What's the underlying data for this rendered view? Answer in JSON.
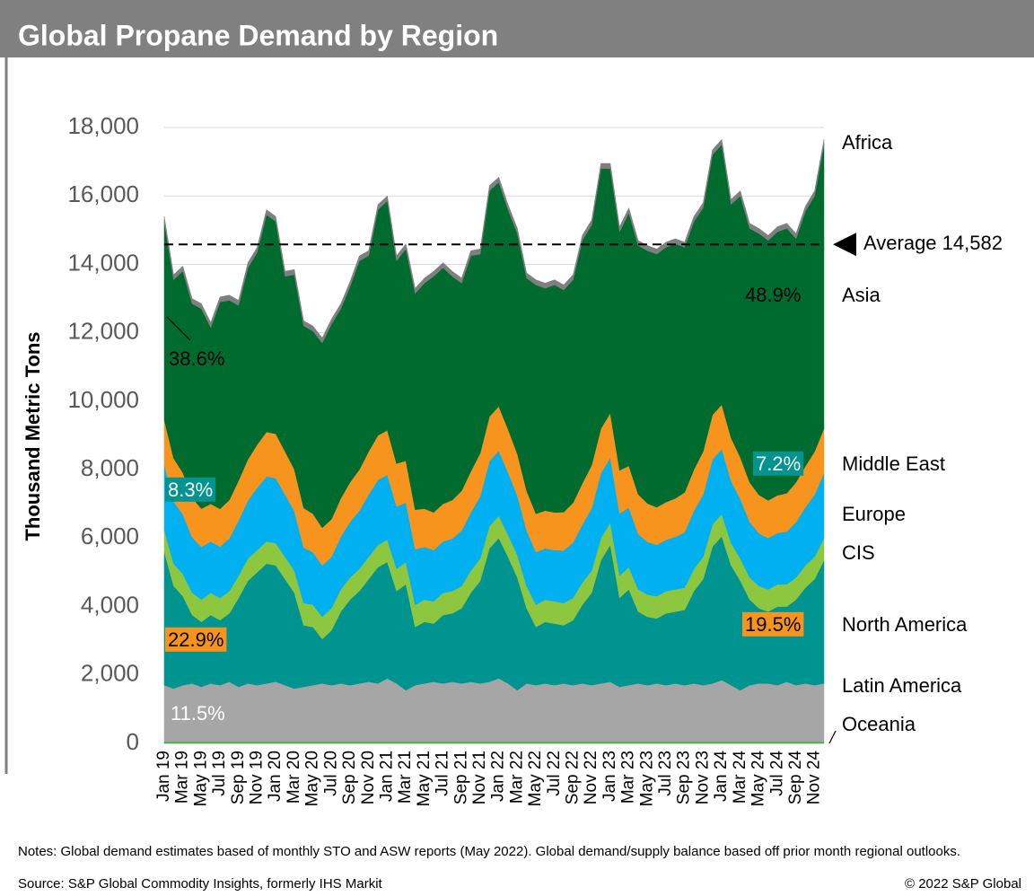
{
  "chart_data": {
    "type": "stacked_area",
    "title": "Global Propane Demand by Region",
    "y_label": "Thousand Metric Tons",
    "categories": [
      "Jan 19",
      null,
      "Mar 19",
      null,
      "May 19",
      null,
      "Jul 19",
      null,
      "Sep 19",
      null,
      "Nov 19",
      null,
      "Jan 20",
      null,
      "Mar 20",
      null,
      "May 20",
      null,
      "Jul 20",
      null,
      "Sep 20",
      null,
      "Nov 20",
      null,
      "Jan 21",
      null,
      "Mar 21",
      null,
      "May 21",
      null,
      "Jul 21",
      null,
      "Sep 21",
      null,
      "Nov 21",
      null,
      "Jan 22",
      null,
      "Mar 22",
      null,
      "May 22",
      null,
      "Jul 22",
      null,
      "Sep 22",
      null,
      "Nov 22",
      null,
      "Jan 23",
      null,
      "Mar 23",
      null,
      "May 23",
      null,
      "Jul 23",
      null,
      "Sep 23",
      null,
      "Nov 23",
      null,
      "Jan 24",
      null,
      "Mar 24",
      null,
      "May 24",
      null,
      "Jul 24",
      null,
      "Sep 24",
      null,
      "Nov 24",
      null
    ],
    "series": [
      {
        "name": "Oceania",
        "color": "#3cb44b",
        "values": [
          50,
          50,
          50,
          50,
          50,
          50,
          50,
          50,
          50,
          50,
          50,
          50,
          50,
          50,
          50,
          50,
          50,
          50,
          50,
          50,
          50,
          50,
          50,
          50,
          50,
          50,
          50,
          50,
          50,
          50,
          50,
          50,
          50,
          50,
          50,
          50,
          50,
          50,
          50,
          50,
          50,
          50,
          50,
          50,
          50,
          50,
          50,
          50,
          50,
          50,
          50,
          50,
          50,
          50,
          50,
          50,
          50,
          50,
          50,
          50,
          50,
          50,
          50,
          50,
          50,
          50,
          50,
          50,
          50,
          50,
          50,
          50
        ]
      },
      {
        "name": "Latin America",
        "color": "#a6a6a6",
        "values": [
          1650,
          1550,
          1650,
          1700,
          1600,
          1700,
          1650,
          1750,
          1600,
          1700,
          1650,
          1700,
          1750,
          1650,
          1550,
          1600,
          1650,
          1700,
          1650,
          1700,
          1650,
          1700,
          1750,
          1700,
          1850,
          1700,
          1500,
          1650,
          1700,
          1750,
          1700,
          1750,
          1700,
          1750,
          1700,
          1750,
          1850,
          1700,
          1500,
          1700,
          1650,
          1700,
          1650,
          1700,
          1650,
          1700,
          1650,
          1700,
          1750,
          1600,
          1650,
          1700,
          1650,
          1700,
          1650,
          1700,
          1650,
          1700,
          1650,
          1700,
          1800,
          1650,
          1500,
          1650,
          1700,
          1700,
          1650,
          1750,
          1650,
          1700,
          1650,
          1700
        ]
      },
      {
        "name": "North America",
        "color": "#009490",
        "values": [
          3900,
          3000,
          2600,
          2000,
          1900,
          2000,
          1900,
          2000,
          2600,
          3000,
          3300,
          3500,
          3400,
          3100,
          2800,
          1800,
          1700,
          1300,
          1600,
          2100,
          2500,
          2700,
          3000,
          3400,
          3400,
          2700,
          3100,
          1700,
          1800,
          1700,
          2000,
          2000,
          2200,
          2600,
          3000,
          3900,
          4100,
          3700,
          3300,
          2200,
          1700,
          1800,
          1800,
          1700,
          1900,
          2300,
          2700,
          3600,
          4000,
          2600,
          2800,
          2100,
          2000,
          1900,
          2100,
          2100,
          2200,
          2700,
          3100,
          4000,
          4200,
          3500,
          3200,
          2500,
          2200,
          2100,
          2300,
          2200,
          2500,
          2800,
          3100,
          3600
        ]
      },
      {
        "name": "CIS",
        "color": "#8dc63f",
        "values": [
          650,
          650,
          650,
          650,
          650,
          650,
          650,
          650,
          650,
          650,
          650,
          650,
          650,
          650,
          650,
          650,
          650,
          650,
          650,
          650,
          650,
          650,
          650,
          650,
          650,
          650,
          650,
          650,
          650,
          650,
          650,
          650,
          650,
          650,
          650,
          650,
          650,
          650,
          650,
          650,
          650,
          650,
          650,
          650,
          650,
          650,
          650,
          650,
          650,
          650,
          650,
          650,
          650,
          650,
          650,
          650,
          650,
          650,
          650,
          650,
          650,
          650,
          650,
          650,
          650,
          650,
          650,
          650,
          650,
          650,
          650,
          650
        ]
      },
      {
        "name": "Europe",
        "color": "#00b0f0",
        "values": [
          1900,
          1820,
          1740,
          1620,
          1540,
          1500,
          1500,
          1540,
          1620,
          1700,
          1820,
          1900,
          1900,
          1820,
          1740,
          1620,
          1540,
          1500,
          1500,
          1540,
          1620,
          1700,
          1820,
          1900,
          1900,
          1820,
          1740,
          1620,
          1540,
          1500,
          1500,
          1540,
          1620,
          1700,
          1820,
          1900,
          1900,
          1820,
          1740,
          1620,
          1540,
          1500,
          1500,
          1540,
          1620,
          1700,
          1820,
          1900,
          1900,
          1820,
          1740,
          1620,
          1540,
          1500,
          1500,
          1540,
          1620,
          1700,
          1820,
          1900,
          1900,
          1820,
          1740,
          1620,
          1540,
          1500,
          1500,
          1540,
          1620,
          1700,
          1820,
          1900
        ]
      },
      {
        "name": "Middle East",
        "color": "#f7941d",
        "values": [
          1300,
          1260,
          1220,
          1160,
          1120,
          1100,
          1100,
          1120,
          1160,
          1200,
          1260,
          1300,
          1300,
          1260,
          1220,
          1160,
          1120,
          1100,
          1100,
          1120,
          1160,
          1200,
          1260,
          1300,
          1300,
          1260,
          1220,
          1160,
          1120,
          1100,
          1100,
          1120,
          1160,
          1200,
          1260,
          1300,
          1300,
          1260,
          1220,
          1160,
          1120,
          1100,
          1100,
          1120,
          1160,
          1200,
          1260,
          1300,
          1300,
          1260,
          1220,
          1160,
          1120,
          1100,
          1100,
          1120,
          1160,
          1200,
          1260,
          1300,
          1300,
          1260,
          1220,
          1160,
          1120,
          1100,
          1100,
          1120,
          1160,
          1200,
          1260,
          1300
        ]
      },
      {
        "name": "Asia",
        "color": "#006b2f",
        "values": [
          5800,
          5220,
          5890,
          5670,
          5840,
          5150,
          6050,
          5840,
          5120,
          5600,
          5620,
          6350,
          6200,
          5120,
          5690,
          5320,
          5340,
          5400,
          5700,
          5540,
          5720,
          6100,
          5720,
          6600,
          6700,
          5920,
          6190,
          6320,
          6590,
          6900,
          6900,
          6540,
          6070,
          6300,
          5820,
          6600,
          6550,
          6420,
          6440,
          6220,
          6690,
          6500,
          6650,
          6490,
          6520,
          7100,
          7020,
          7600,
          7150,
          6970,
          7390,
          7270,
          7390,
          7400,
          7450,
          7440,
          7170,
          7250,
          7120,
          7600,
          7600,
          6820,
          7640,
          7420,
          7640,
          7600,
          7700,
          7740,
          7120,
          7450,
          7470,
          8300
        ]
      },
      {
        "name": "Africa",
        "color": "#7f7f7f",
        "values": [
          150,
          150,
          150,
          150,
          150,
          150,
          150,
          150,
          150,
          150,
          150,
          150,
          150,
          150,
          150,
          150,
          150,
          150,
          150,
          150,
          150,
          150,
          150,
          150,
          150,
          150,
          150,
          150,
          150,
          150,
          150,
          150,
          150,
          150,
          150,
          150,
          150,
          150,
          150,
          150,
          150,
          150,
          150,
          150,
          150,
          150,
          150,
          150,
          150,
          150,
          150,
          150,
          150,
          150,
          150,
          150,
          150,
          150,
          150,
          150,
          150,
          150,
          150,
          150,
          150,
          150,
          150,
          150,
          150,
          150,
          150,
          150
        ]
      }
    ],
    "ylim": [
      0,
      18000
    ],
    "yticks": [
      0,
      {
        "value": 2000,
        "label": "2,000"
      },
      {
        "value": 4000,
        "label": "4,000"
      },
      {
        "value": 6000,
        "label": "6,000"
      },
      {
        "value": 8000,
        "label": "8,000"
      },
      {
        "value": 10000,
        "label": "10,000"
      },
      {
        "value": 12000,
        "label": "12,000"
      },
      {
        "value": 14000,
        "label": "14,000"
      },
      {
        "value": 16000,
        "label": "16,000"
      },
      {
        "value": 18000,
        "label": "18,000"
      }
    ],
    "grid": true,
    "average": {
      "value": 14582,
      "label": "Average 14,582"
    },
    "annotations": [
      "38.6%",
      "8.3%",
      "22.9%",
      "11.5%",
      "48.9%",
      "7.2%",
      "19.5%"
    ],
    "notes": "Notes: Global demand estimates based of monthly STO and ASW reports (May 2022). Global demand/supply balance based off prior month regional outlooks.",
    "source": "Source: S&P Global Commodity Insights, formerly IHS Markit",
    "copyright": "© 2022 S&P Global"
  }
}
